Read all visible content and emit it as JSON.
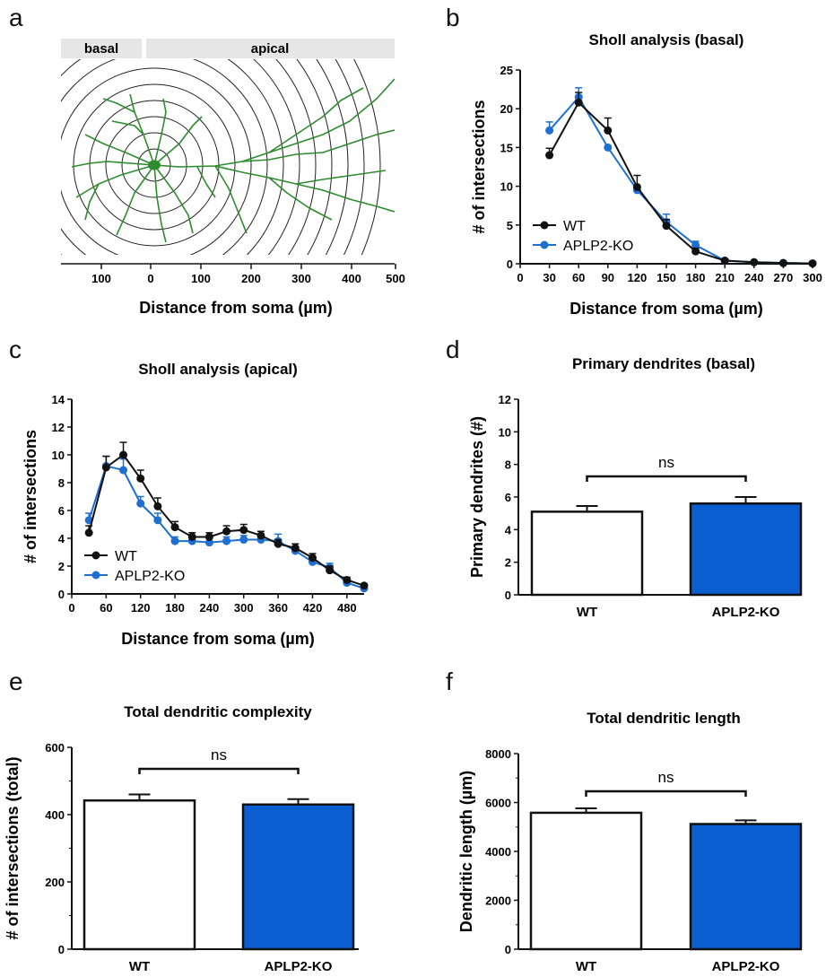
{
  "panels": {
    "a": {
      "letter": "a",
      "label_basal": "basal",
      "label_apical": "apical",
      "axis_label": "Distance from soma (µm)",
      "ticks": [
        "100",
        "0",
        "100",
        "200",
        "300",
        "400",
        "500"
      ],
      "neuron_color": "#2e8b2e"
    },
    "b": {
      "letter": "b"
    },
    "c": {
      "letter": "c"
    },
    "d": {
      "letter": "d"
    },
    "e": {
      "letter": "e"
    },
    "f": {
      "letter": "f"
    }
  },
  "colors": {
    "wt": "#111111",
    "ko": "#1e6fd0",
    "ko_bar": "#0a5ed0"
  },
  "chart_data": [
    {
      "id": "b",
      "type": "line",
      "title": "Sholl analysis (basal)",
      "xlabel": "Distance from soma (µm)",
      "ylabel": "# of intersections",
      "xlim": [
        0,
        300
      ],
      "ylim": [
        0,
        25
      ],
      "xticks": [
        0,
        30,
        60,
        90,
        120,
        150,
        180,
        210,
        240,
        270,
        300
      ],
      "yticks": [
        0,
        5,
        10,
        15,
        20,
        25
      ],
      "x": [
        30,
        60,
        90,
        120,
        150,
        180,
        210,
        240,
        270,
        300
      ],
      "legend": "bottom-left",
      "series": [
        {
          "name": "WT",
          "values": [
            14,
            20.8,
            17.2,
            9.9,
            4.9,
            1.6,
            0.4,
            0.2,
            0.1,
            0.05
          ],
          "err": [
            0.9,
            1.3,
            1.6,
            1.5,
            0.8,
            0.4,
            0.2,
            0.1,
            0.1,
            0.05
          ]
        },
        {
          "name": "APLP2-KO",
          "values": [
            17.2,
            21.5,
            15,
            9.5,
            5.4,
            2.4,
            0.4,
            0.2,
            0.1,
            0.05
          ],
          "err": [
            1.1,
            1.2,
            0,
            0,
            1.0,
            0.5,
            0.2,
            0.1,
            0.1,
            0.05
          ]
        }
      ]
    },
    {
      "id": "c",
      "type": "line",
      "title": "Sholl analysis (apical)",
      "xlabel": "Distance from soma (µm)",
      "ylabel": "# of intersections",
      "xlim": [
        0,
        510
      ],
      "ylim": [
        0,
        14
      ],
      "xticks": [
        0,
        60,
        120,
        180,
        240,
        300,
        360,
        420,
        480
      ],
      "yticks": [
        0,
        2,
        4,
        6,
        8,
        10,
        12,
        14
      ],
      "x": [
        30,
        60,
        90,
        120,
        150,
        180,
        210,
        240,
        270,
        300,
        330,
        360,
        390,
        420,
        450,
        480,
        510
      ],
      "legend": "bottom-left",
      "series": [
        {
          "name": "WT",
          "values": [
            4.4,
            9.1,
            10.0,
            8.3,
            6.3,
            4.8,
            4.1,
            4.1,
            4.5,
            4.6,
            4.2,
            3.6,
            3.3,
            2.6,
            1.7,
            1.0,
            0.6
          ],
          "err": [
            0.5,
            0.8,
            0.9,
            0.6,
            0.6,
            0.4,
            0.3,
            0.3,
            0.4,
            0.4,
            0.3,
            0.3,
            0.3,
            0.3,
            0.3,
            0.2,
            0.1
          ]
        },
        {
          "name": "APLP2-KO",
          "values": [
            5.3,
            9.2,
            8.9,
            6.5,
            5.3,
            3.8,
            3.8,
            3.7,
            3.8,
            3.9,
            3.9,
            3.8,
            3.1,
            2.3,
            1.9,
            0.8,
            0.4
          ],
          "err": [
            0.5,
            0.7,
            0.8,
            0.5,
            0.5,
            0.3,
            0.3,
            0.3,
            0.3,
            0.3,
            0.3,
            0.5,
            0.3,
            0.3,
            0.3,
            0.2,
            0.1
          ]
        }
      ]
    },
    {
      "id": "d",
      "type": "bar",
      "title": "Primary dendrites (basal)",
      "ylabel": "Primary dendrites (#)",
      "ylim": [
        0,
        12
      ],
      "yticks": [
        0,
        2,
        4,
        6,
        8,
        10,
        12
      ],
      "categories": [
        "WT",
        "APLP2-KO"
      ],
      "values": [
        5.1,
        5.6
      ],
      "err": [
        0.35,
        0.4
      ],
      "significance": "ns"
    },
    {
      "id": "e",
      "type": "bar",
      "title": "Total dendritic complexity",
      "ylabel": "# of intersections (total)",
      "ylim": [
        0,
        600
      ],
      "yticks": [
        0,
        200,
        400,
        600
      ],
      "categories": [
        "WT",
        "APLP2-KO"
      ],
      "values": [
        442,
        430
      ],
      "err": [
        18,
        16
      ],
      "significance": "ns"
    },
    {
      "id": "f",
      "type": "bar",
      "title": "Total dendritic length",
      "ylabel": "Dendritic length (µm)",
      "ylim": [
        0,
        8000
      ],
      "yticks": [
        0,
        2000,
        4000,
        6000,
        8000
      ],
      "categories": [
        "WT",
        "APLP2-KO"
      ],
      "values": [
        5580,
        5120
      ],
      "err": [
        180,
        150
      ],
      "significance": "ns"
    }
  ]
}
